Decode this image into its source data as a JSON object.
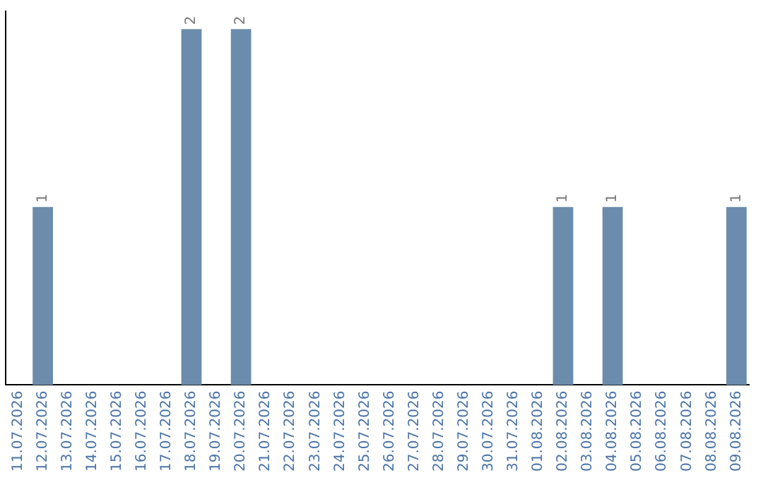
{
  "chart_data": {
    "type": "bar",
    "categories": [
      "11.07.2026",
      "12.07.2026",
      "13.07.2026",
      "14.07.2026",
      "15.07.2026",
      "16.07.2026",
      "17.07.2026",
      "18.07.2026",
      "19.07.2026",
      "20.07.2026",
      "21.07.2026",
      "22.07.2026",
      "23.07.2026",
      "24.07.2026",
      "25.07.2026",
      "26.07.2026",
      "27.07.2026",
      "28.07.2026",
      "29.07.2026",
      "30.07.2026",
      "31.07.2026",
      "01.08.2026",
      "02.08.2026",
      "03.08.2026",
      "04.08.2026",
      "05.08.2026",
      "06.08.2026",
      "07.08.2026",
      "08.08.2026",
      "09.08.2026"
    ],
    "values": [
      0,
      1,
      0,
      0,
      0,
      0,
      0,
      2,
      0,
      2,
      0,
      0,
      0,
      0,
      0,
      0,
      0,
      0,
      0,
      0,
      0,
      0,
      1,
      0,
      1,
      0,
      0,
      0,
      0,
      1
    ],
    "value_labels": [
      null,
      "1",
      null,
      null,
      null,
      null,
      null,
      "2",
      null,
      "2",
      null,
      null,
      null,
      null,
      null,
      null,
      null,
      null,
      null,
      null,
      null,
      null,
      "1",
      null,
      "1",
      null,
      null,
      null,
      null,
      "1"
    ],
    "color": "#6b8cac",
    "ylim": [
      0,
      2.1
    ],
    "tick_labels": "x",
    "grid": false,
    "legend": false
  }
}
